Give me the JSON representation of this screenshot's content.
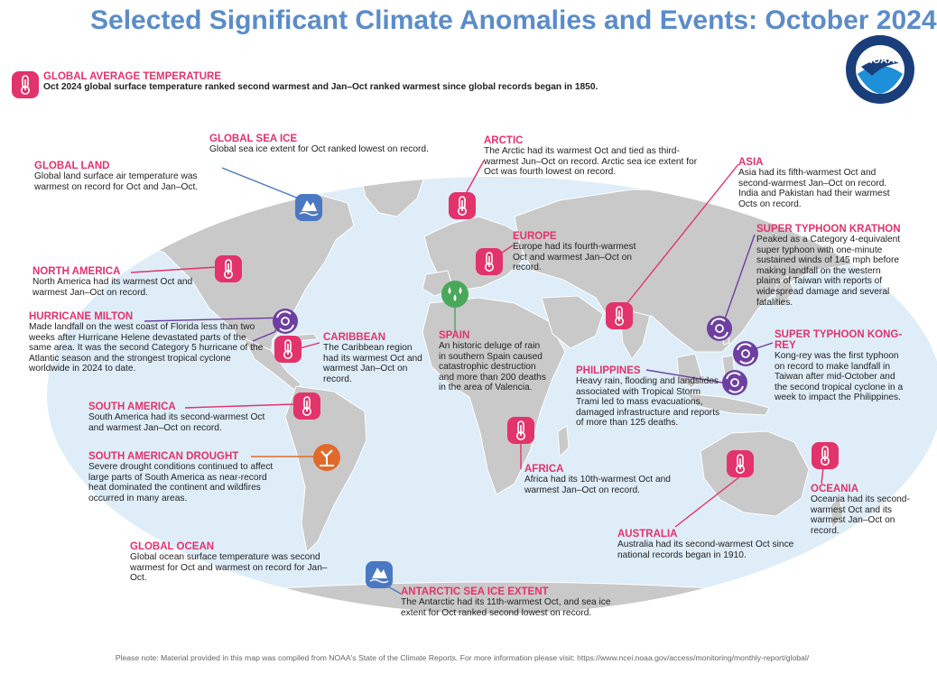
{
  "title": "Selected Significant Climate Anomalies and Events: October 2024",
  "logo": {
    "text": "NOAA",
    "ring_text": "NATIONAL OCEANIC AND ATMOSPHERIC ADMINISTRATION · U.S. DEPARTMENT OF COMMERCE"
  },
  "colors": {
    "accent": "#e2336b",
    "title": "#5b8cc9",
    "ocean": "#deedf8",
    "land": "#c9c9c9",
    "purple": "#6d3fa1",
    "blue_leader": "#4a78c2",
    "orange": "#e06a2b",
    "green": "#4aa85a"
  },
  "global_temperature": {
    "heading": "GLOBAL AVERAGE TEMPERATURE",
    "text": "Oct 2024 global surface temperature ranked second warmest and Jan–Oct ranked warmest since global records began in 1850."
  },
  "annotations": {
    "global_sea_ice": {
      "heading": "GLOBAL SEA ICE",
      "text": "Global sea ice extent for Oct ranked lowest on record."
    },
    "global_land": {
      "heading": "GLOBAL LAND",
      "text": "Global land surface air temperature was warmest on record for Oct and Jan–Oct."
    },
    "arctic": {
      "heading": "ARCTIC",
      "text": "The Arctic had its warmest Oct and tied as third-warmest Jun–Oct on record. Arctic sea ice extent for Oct was fourth lowest on record."
    },
    "asia": {
      "heading": "ASIA",
      "text": "Asia had its fifth-warmest Oct and second-warmest Jan–Oct on record. India and Pakistan had their warmest Octs on record."
    },
    "europe": {
      "heading": "EUROPE",
      "text": "Europe had its fourth-warmest Oct and warmest Jan–Oct on record."
    },
    "north_america": {
      "heading": "NORTH AMERICA",
      "text": "North America had its warmest Oct and warmest Jan–Oct on record."
    },
    "super_typhoon_krathon": {
      "heading": "SUPER TYPHOON KRATHON",
      "text": "Peaked as a Category 4-equivalent super typhoon with one-minute sustained winds of 145 mph before making landfall on the western plains of Taiwan with reports of widespread damage and several fatalities."
    },
    "hurricane_milton": {
      "heading": "HURRICANE MILTON",
      "text": "Made landfall on the west coast of Florida less than two weeks after Hurricane Helene devastated parts of the same area. It was the second Category 5 hurricane of the Atlantic season and the strongest tropical cyclone worldwide in 2024 to date."
    },
    "caribbean": {
      "heading": "CARIBBEAN",
      "text": "The Caribbean region had its warmest Oct and warmest Jan–Oct on record."
    },
    "spain": {
      "heading": "SPAIN",
      "text": "An historic deluge of rain in southern Spain caused catastrophic destruction and more than 200 deaths in the area of Valencia."
    },
    "super_typhoon_kong_rey": {
      "heading": "SUPER TYPHOON KONG-REY",
      "text": "Kong-rey was the first typhoon on record to make landfall in Taiwan after mid-October and the second tropical cyclone in a week to impact the Philippines."
    },
    "philippines": {
      "heading": "PHILIPPINES",
      "text": "Heavy rain, flooding and landslides associated with Tropical Storm Trami led to mass evacuations, damaged infrastructure and reports of more than 125 deaths."
    },
    "south_america": {
      "heading": "SOUTH AMERICA",
      "text": "South America had its second-warmest Oct and warmest Jan–Oct on record."
    },
    "south_american_drought": {
      "heading": "SOUTH AMERICAN DROUGHT",
      "text": "Severe drought conditions continued to affect large parts of South America as near-record heat dominated the continent and wildfires occurred in many areas."
    },
    "africa": {
      "heading": "AFRICA",
      "text": "Africa had its 10th-warmest Oct and warmest Jan–Oct on record."
    },
    "oceania": {
      "heading": "OCEANIA",
      "text": "Oceania had its second-warmest Oct and its warmest Jan–Oct on record."
    },
    "australia": {
      "heading": "AUSTRALIA",
      "text": "Australia had its second-warmest Oct since national records began in 1910."
    },
    "global_ocean": {
      "heading": "GLOBAL OCEAN",
      "text": "Global ocean surface temperature was second warmest for Oct and warmest on record for Jan–Oct."
    },
    "antarctic_sea_ice": {
      "heading": "ANTARCTIC SEA ICE EXTENT",
      "text": "The Antarctic had its 11th-warmest Oct, and sea ice extent for Oct ranked second lowest on record."
    }
  },
  "icons": [
    "thermometer-icon",
    "sea-ice-icon",
    "hurricane-icon",
    "rain-drops-icon",
    "drought-icon"
  ],
  "footer": "Please note: Material provided in this map was compiled from NOAA's State of the Climate Reports. For more information please visit: https://www.ncei.noaa.gov/access/monitoring/monthly-report/global/"
}
